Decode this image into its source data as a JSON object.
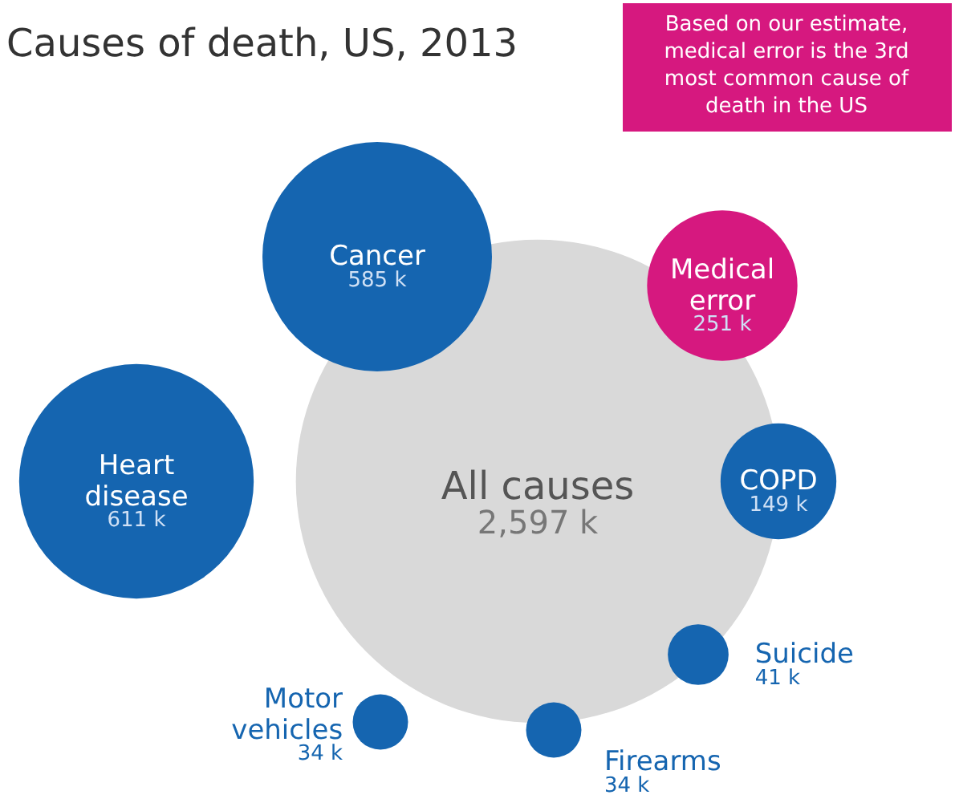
{
  "chart_data": {
    "type": "other",
    "title": "Causes of death, US, 2013",
    "categories": [
      "All causes",
      "Heart disease",
      "Cancer",
      "Medical error",
      "COPD",
      "Suicide",
      "Firearms",
      "Motor vehicles"
    ],
    "values": [
      2597,
      611,
      585,
      251,
      149,
      41,
      34,
      34
    ],
    "value_labels": [
      "2,597 k",
      "611 k",
      "585 k",
      "251 k",
      "149 k",
      "41 k",
      "34 k",
      "34 k"
    ],
    "colors": [
      "#d9d9d9",
      "#1565b0",
      "#1565b0",
      "#d6187f",
      "#1565b0",
      "#1565b0",
      "#1565b0",
      "#1565b0"
    ],
    "annotations": [
      "Based on our estimate, medical error is the 3rd most common cause of death in the US"
    ]
  }
}
